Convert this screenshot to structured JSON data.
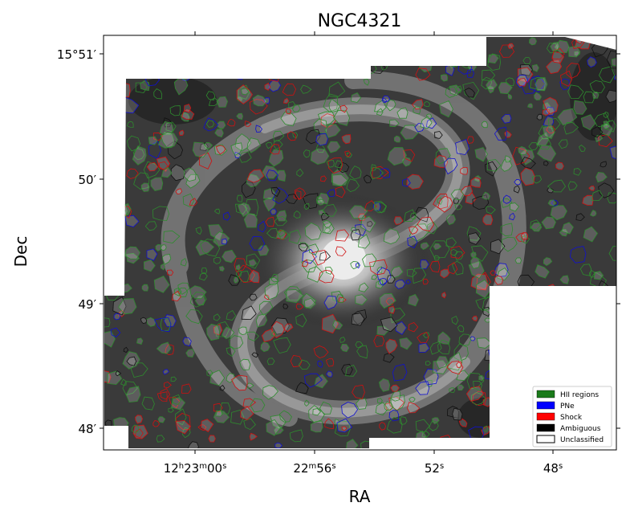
{
  "chart_data": {
    "type": "scatter",
    "title": "NGC4321",
    "xlabel": "RA",
    "ylabel": "Dec",
    "image": "grayscale galaxy image with region outlines",
    "x_ticks": [
      {
        "main": "12",
        "sup1": "h",
        "mid": "23",
        "sup2": "m",
        "end": "00",
        "sup3": "s"
      },
      {
        "main": "22",
        "sup1": "m",
        "mid": "56",
        "sup2": "s",
        "end": "",
        "sup3": ""
      },
      {
        "main": "52",
        "sup1": "s",
        "mid": "",
        "sup2": "",
        "end": "",
        "sup3": ""
      },
      {
        "main": "48",
        "sup1": "s",
        "mid": "",
        "sup2": "",
        "end": "",
        "sup3": ""
      }
    ],
    "y_ticks": [
      "15°51′",
      "50′",
      "49′",
      "48′"
    ],
    "legend": {
      "placement": "lower-right",
      "items": [
        {
          "label": "HII regions",
          "color": "#1a7a1a"
        },
        {
          "label": "PNe",
          "color": "#0000ff"
        },
        {
          "label": "Shock",
          "color": "#ff0000"
        },
        {
          "label": "Ambiguous",
          "color": "#000000"
        },
        {
          "label": "Unclassified",
          "color": "#ffffff"
        }
      ]
    }
  }
}
